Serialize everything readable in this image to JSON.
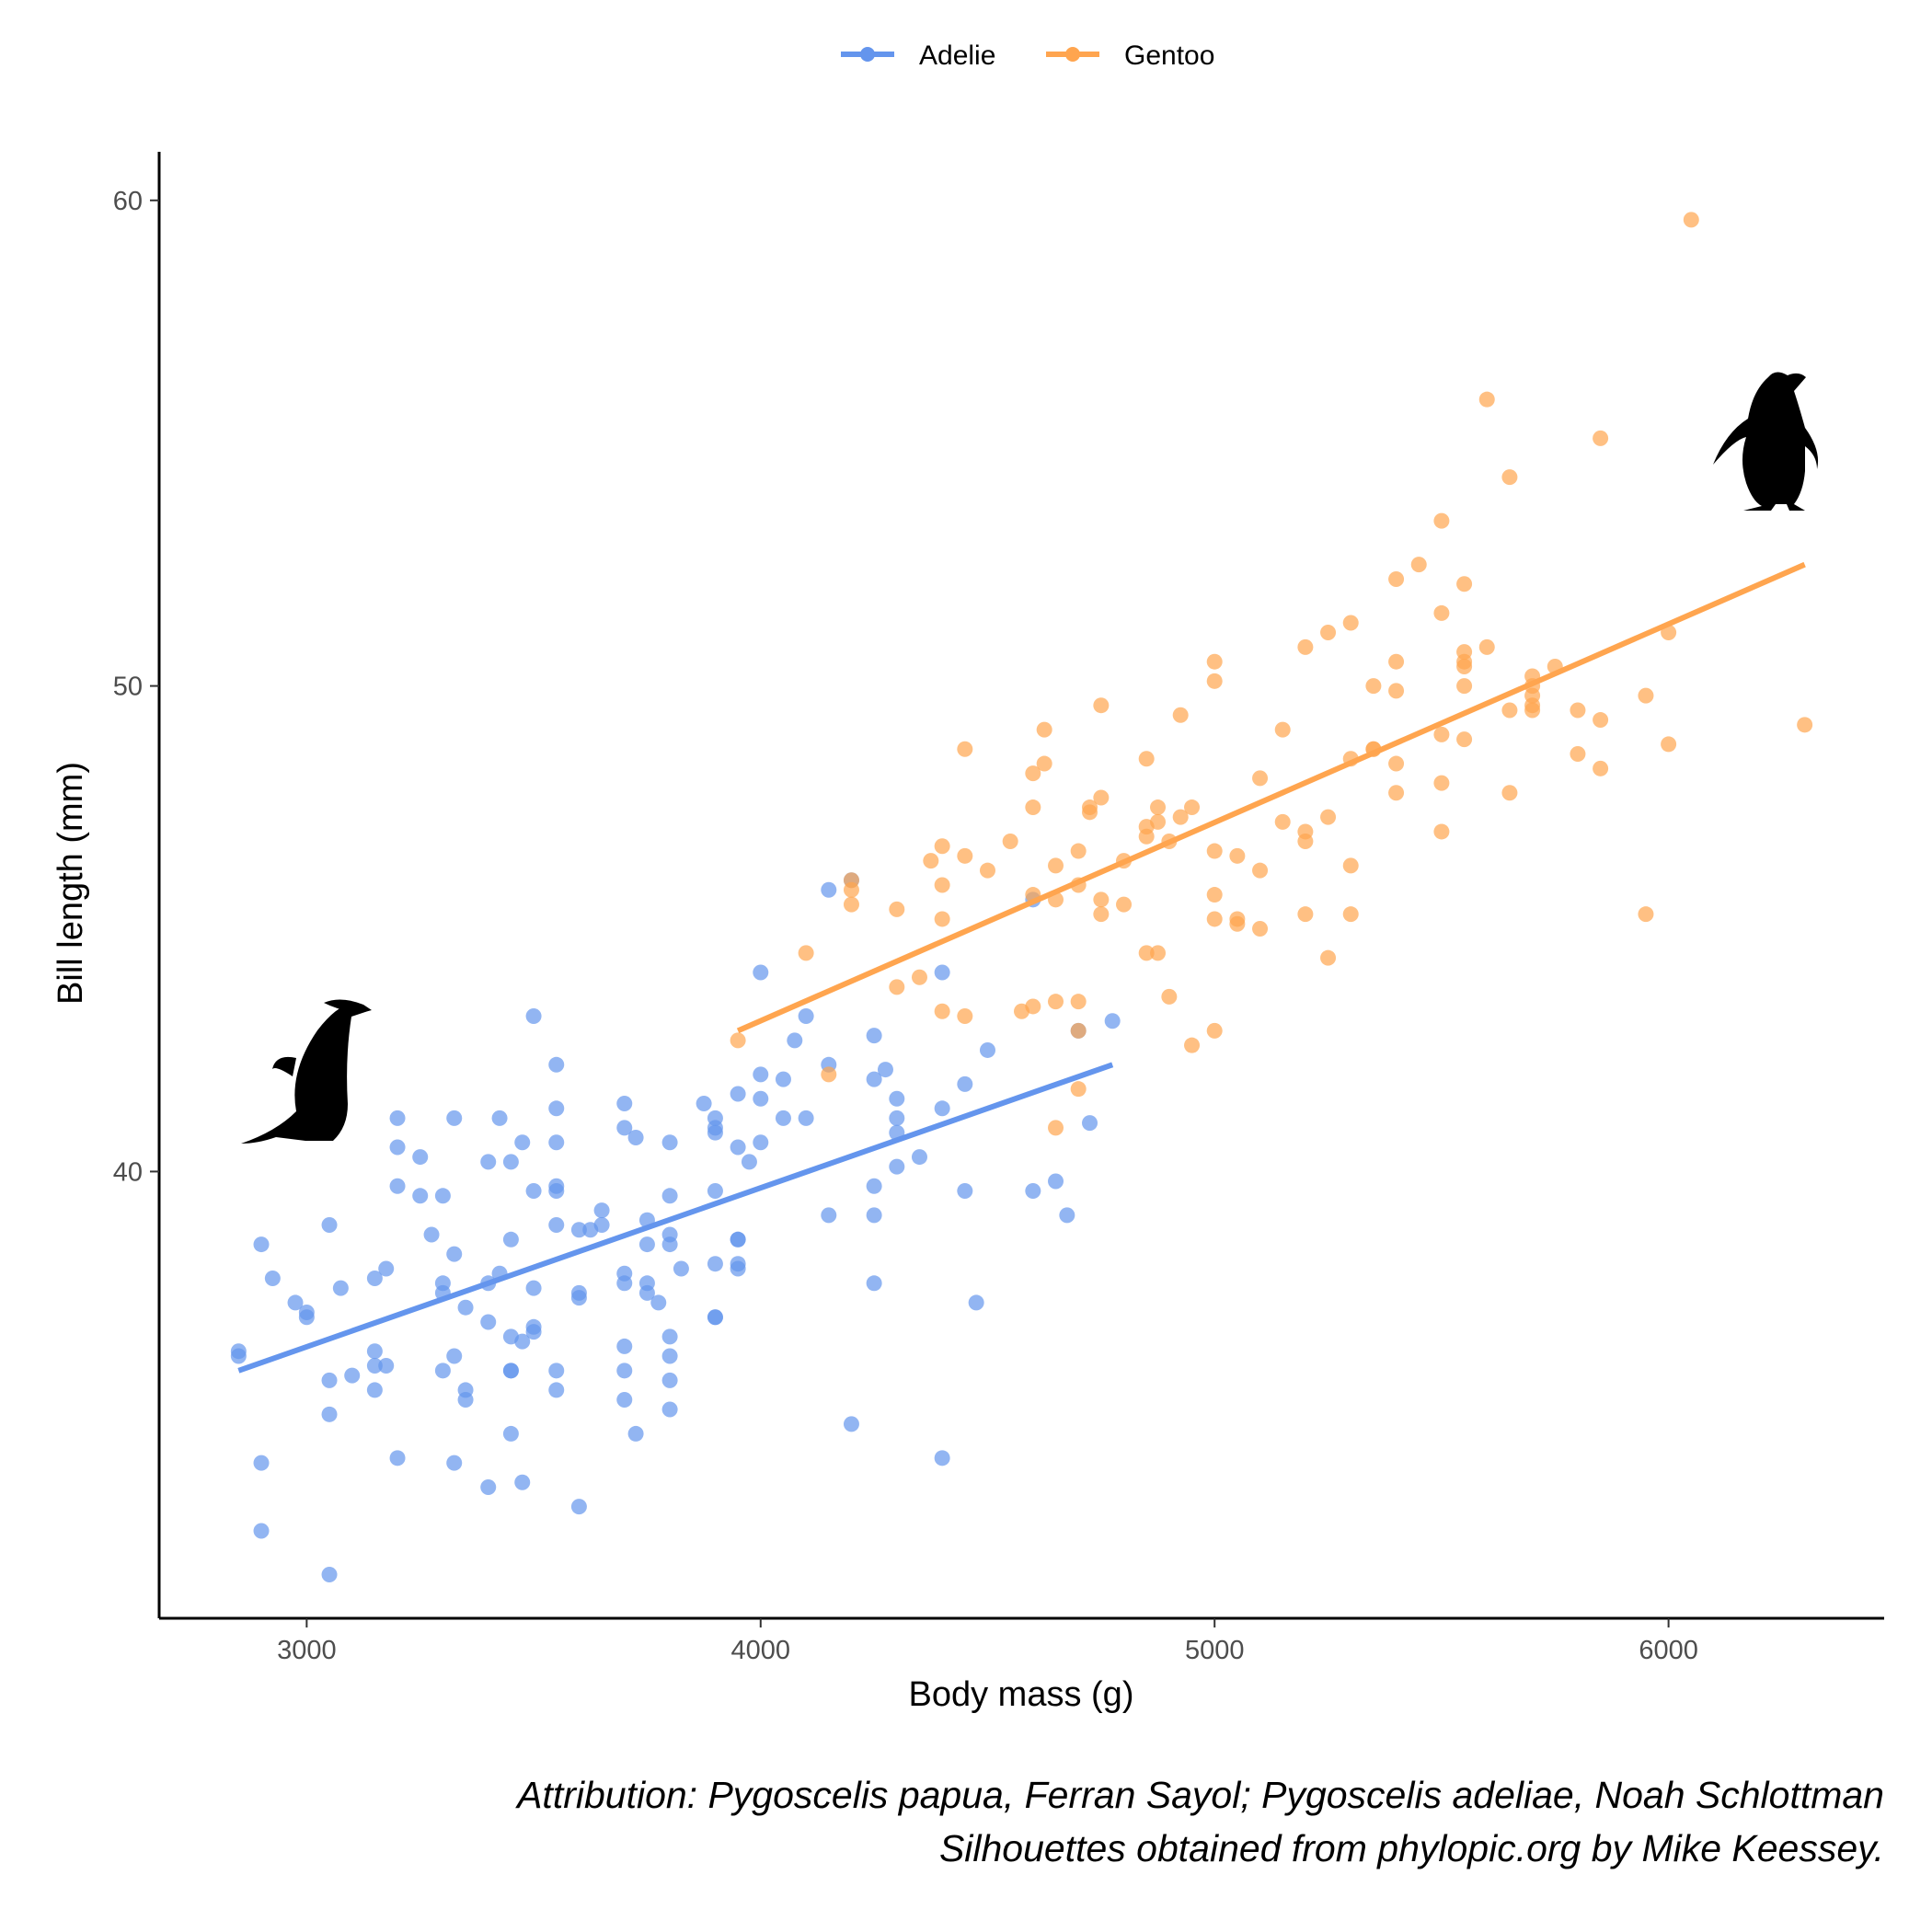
{
  "chart_data": {
    "type": "scatter",
    "title": "",
    "xlabel": "Body mass (g)",
    "ylabel": "Bill length (mm)",
    "xlim": [
      2675,
      6475
    ],
    "ylim": [
      30.8,
      61
    ],
    "xticks": [
      3000,
      4000,
      5000,
      6000
    ],
    "yticks": [
      40,
      50,
      60
    ],
    "grid": false,
    "legend": "top",
    "trend_lines": true,
    "series": [
      {
        "name": "Adelie",
        "color": "#6495ED",
        "trend": {
          "x": [
            2850,
            4775
          ],
          "y": [
            35.9,
            42.2
          ]
        },
        "x": [
          2850,
          2850,
          2900,
          2900,
          2900,
          2925,
          2975,
          3000,
          3000,
          3050,
          3050,
          3050,
          3050,
          3075,
          3100,
          3150,
          3150,
          3150,
          3150,
          3175,
          3175,
          3200,
          3200,
          3200,
          3200,
          3250,
          3250,
          3275,
          3300,
          3300,
          3300,
          3300,
          3325,
          3325,
          3325,
          3325,
          3350,
          3350,
          3350,
          3400,
          3400,
          3400,
          3400,
          3425,
          3425,
          3450,
          3450,
          3450,
          3450,
          3450,
          3450,
          3475,
          3475,
          3475,
          3500,
          3500,
          3500,
          3500,
          3500,
          3550,
          3550,
          3550,
          3550,
          3550,
          3550,
          3550,
          3550,
          3600,
          3600,
          3600,
          3600,
          3625,
          3650,
          3650,
          3700,
          3700,
          3700,
          3700,
          3700,
          3700,
          3700,
          3725,
          3725,
          3750,
          3750,
          3750,
          3750,
          3775,
          3800,
          3800,
          3800,
          3800,
          3800,
          3800,
          3800,
          3800,
          3825,
          3875,
          3900,
          3900,
          3900,
          3900,
          3900,
          3900,
          3900,
          3950,
          3950,
          3950,
          3950,
          3950,
          3950,
          3975,
          4000,
          4000,
          4000,
          4000,
          4050,
          4050,
          4075,
          4100,
          4100,
          4150,
          4150,
          4150,
          4200,
          4200,
          4250,
          4250,
          4250,
          4250,
          4250,
          4275,
          4300,
          4300,
          4300,
          4300,
          4350,
          4400,
          4400,
          4400,
          4450,
          4450,
          4475,
          4500,
          4600,
          4600,
          4650,
          4675,
          4700,
          4725,
          4775
        ],
        "y": [
          36.2,
          36.3,
          38.5,
          34.0,
          32.6,
          37.8,
          37.3,
          37.1,
          37.0,
          38.9,
          35.7,
          35.0,
          31.7,
          37.6,
          35.8,
          36.3,
          36.0,
          35.5,
          37.8,
          36.0,
          38.0,
          41.1,
          40.5,
          39.7,
          34.1,
          40.3,
          39.5,
          38.7,
          39.5,
          37.7,
          37.5,
          35.9,
          41.1,
          36.2,
          38.3,
          34.0,
          37.2,
          35.5,
          35.3,
          40.2,
          37.7,
          36.9,
          33.5,
          41.1,
          37.9,
          40.2,
          38.6,
          36.6,
          35.9,
          35.9,
          34.6,
          40.6,
          36.5,
          33.6,
          43.2,
          39.6,
          37.6,
          36.7,
          36.8,
          42.2,
          41.3,
          40.6,
          39.7,
          39.6,
          38.9,
          35.9,
          35.5,
          38.8,
          37.4,
          37.5,
          33.1,
          38.8,
          39.2,
          38.9,
          41.4,
          40.9,
          37.7,
          37.9,
          36.4,
          35.9,
          35.3,
          40.7,
          34.6,
          39.0,
          38.5,
          37.5,
          37.7,
          37.3,
          40.6,
          39.5,
          38.7,
          38.5,
          36.6,
          36.2,
          35.7,
          35.1,
          38.0,
          41.4,
          39.6,
          41.1,
          40.9,
          40.8,
          38.1,
          37.0,
          37.0,
          41.6,
          40.5,
          38.1,
          38.0,
          38.6,
          38.6,
          40.2,
          44.1,
          42.0,
          41.5,
          40.6,
          41.9,
          41.1,
          42.7,
          43.2,
          41.1,
          45.8,
          42.2,
          39.1,
          46.0,
          34.8,
          42.8,
          41.9,
          39.7,
          39.1,
          37.7,
          42.1,
          41.5,
          41.1,
          40.8,
          40.1,
          40.3,
          44.1,
          41.3,
          34.1,
          41.8,
          39.6,
          37.3,
          42.5,
          45.6,
          39.6,
          39.8,
          39.1,
          42.9,
          41.0,
          43.1
        ]
      },
      {
        "name": "Gentoo",
        "color": "#FFA54F",
        "trend": {
          "x": [
            3950,
            6300
          ],
          "y": [
            42.9,
            52.5
          ]
        },
        "x": [
          3950,
          4100,
          4150,
          4200,
          4200,
          4200,
          4300,
          4300,
          4350,
          4375,
          4400,
          4400,
          4400,
          4400,
          4450,
          4450,
          4450,
          4500,
          4550,
          4575,
          4600,
          4600,
          4600,
          4600,
          4625,
          4625,
          4650,
          4650,
          4650,
          4650,
          4700,
          4700,
          4700,
          4700,
          4700,
          4725,
          4725,
          4750,
          4750,
          4750,
          4750,
          4800,
          4800,
          4850,
          4850,
          4850,
          4850,
          4875,
          4875,
          4875,
          4900,
          4900,
          4925,
          4925,
          4950,
          4950,
          5000,
          5000,
          5000,
          5000,
          5000,
          5000,
          5050,
          5050,
          5050,
          5100,
          5100,
          5100,
          5150,
          5150,
          5200,
          5200,
          5200,
          5200,
          5250,
          5250,
          5250,
          5300,
          5300,
          5300,
          5300,
          5350,
          5350,
          5350,
          5400,
          5400,
          5400,
          5400,
          5400,
          5450,
          5500,
          5500,
          5500,
          5500,
          5500,
          5550,
          5550,
          5550,
          5550,
          5550,
          5550,
          5600,
          5600,
          5650,
          5650,
          5650,
          5700,
          5700,
          5700,
          5700,
          5700,
          5750,
          5800,
          5800,
          5850,
          5850,
          5850,
          5950,
          5950,
          6000,
          6000,
          6050,
          6300
        ],
        "y": [
          42.7,
          44.5,
          42.0,
          45.5,
          45.8,
          46.0,
          45.4,
          43.8,
          44.0,
          46.4,
          46.7,
          45.9,
          45.2,
          43.3,
          48.7,
          46.5,
          43.2,
          46.2,
          46.8,
          43.3,
          48.2,
          47.5,
          45.7,
          43.4,
          49.1,
          48.4,
          46.3,
          45.6,
          43.5,
          40.9,
          46.6,
          45.9,
          43.5,
          42.9,
          41.7,
          47.5,
          47.4,
          49.6,
          47.7,
          45.6,
          45.3,
          46.4,
          45.5,
          48.5,
          47.1,
          46.9,
          44.5,
          47.5,
          47.2,
          44.5,
          46.8,
          43.6,
          47.3,
          49.4,
          47.5,
          42.6,
          50.5,
          50.1,
          46.6,
          45.7,
          45.2,
          42.9,
          46.5,
          45.2,
          45.1,
          48.1,
          46.2,
          45.0,
          49.1,
          47.2,
          50.8,
          47.0,
          46.8,
          45.3,
          51.1,
          47.3,
          44.4,
          51.3,
          48.5,
          46.3,
          45.3,
          50.0,
          48.7,
          48.7,
          52.2,
          50.5,
          49.9,
          48.4,
          47.8,
          52.5,
          53.4,
          51.5,
          49.0,
          48.0,
          47.0,
          52.1,
          50.7,
          50.5,
          50.4,
          50.0,
          48.9,
          55.9,
          50.8,
          54.3,
          49.5,
          47.8,
          50.2,
          50.0,
          49.8,
          49.6,
          49.5,
          50.4,
          49.5,
          48.6,
          55.1,
          49.3,
          48.3,
          49.8,
          45.3,
          51.1,
          48.8,
          59.6,
          49.2
        ]
      }
    ]
  },
  "caption": {
    "line1": "Attribution: Pygoscelis papua, Ferran Sayol; Pygoscelis adeliae, Noah Schlottman",
    "line2": "Silhouettes obtained from phylopic.org by Mike Keessey."
  }
}
